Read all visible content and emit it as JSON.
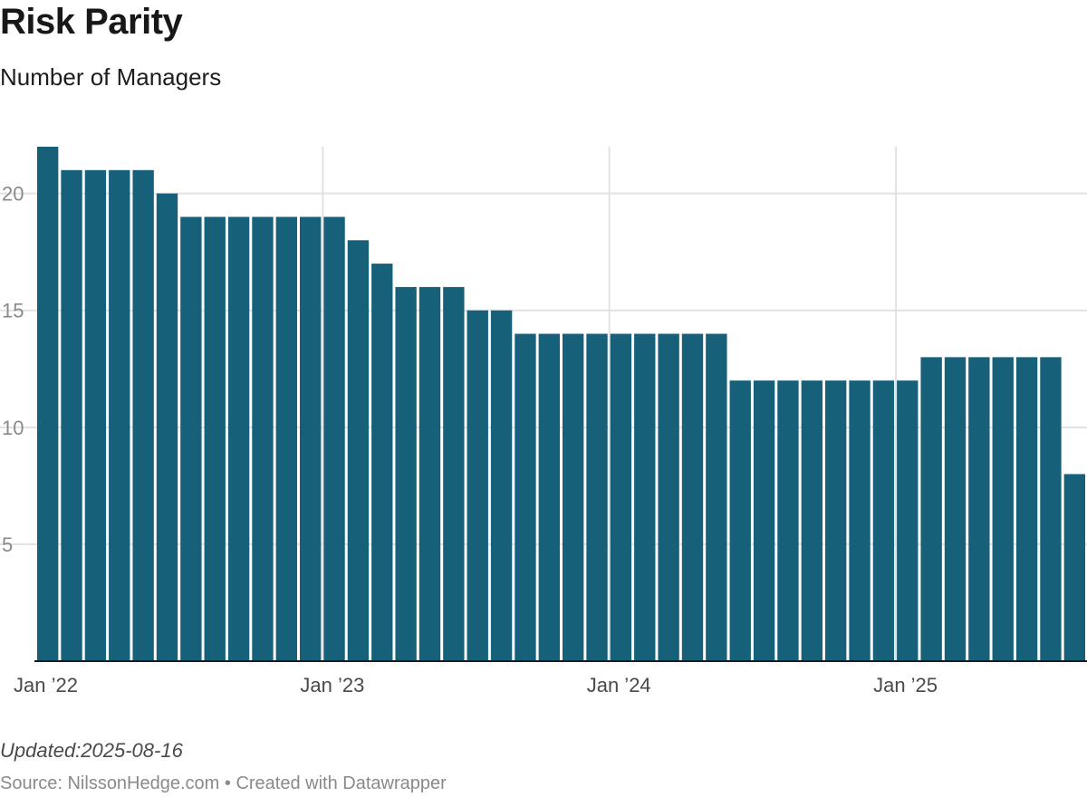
{
  "header": {
    "title": "Risk Parity",
    "subtitle": "Number of Managers"
  },
  "footer": {
    "updated": "Updated:2025-08-16",
    "source": "Source: NilssonHedge.com • Created with Datawrapper"
  },
  "colors": {
    "bar": "#17607a",
    "grid": "#e1e1e1",
    "baseline": "#1a1a1a"
  },
  "chart_data": {
    "type": "bar",
    "title": "Risk Parity",
    "subtitle": "Number of Managers",
    "xlabel": "",
    "ylabel": "",
    "ylim": [
      0,
      22
    ],
    "yticks": [
      5,
      10,
      15,
      20
    ],
    "xticks": [
      {
        "label": "Jan ’22",
        "index": 0
      },
      {
        "label": "Jan ’23",
        "index": 12
      },
      {
        "label": "Jan ’24",
        "index": 24
      },
      {
        "label": "Jan ’25",
        "index": 36
      }
    ],
    "grid": true,
    "categories": [
      "2022-01",
      "2022-02",
      "2022-03",
      "2022-04",
      "2022-05",
      "2022-06",
      "2022-07",
      "2022-08",
      "2022-09",
      "2022-10",
      "2022-11",
      "2022-12",
      "2023-01",
      "2023-02",
      "2023-03",
      "2023-04",
      "2023-05",
      "2023-06",
      "2023-07",
      "2023-08",
      "2023-09",
      "2023-10",
      "2023-11",
      "2023-12",
      "2024-01",
      "2024-02",
      "2024-03",
      "2024-04",
      "2024-05",
      "2024-06",
      "2024-07",
      "2024-08",
      "2024-09",
      "2024-10",
      "2024-11",
      "2024-12",
      "2025-01",
      "2025-02",
      "2025-03",
      "2025-04",
      "2025-05",
      "2025-06",
      "2025-07",
      "2025-08"
    ],
    "values": [
      22,
      21,
      21,
      21,
      21,
      20,
      19,
      19,
      19,
      19,
      19,
      19,
      19,
      18,
      17,
      16,
      16,
      16,
      15,
      15,
      14,
      14,
      14,
      14,
      14,
      14,
      14,
      14,
      14,
      12,
      12,
      12,
      12,
      12,
      12,
      12,
      12,
      13,
      13,
      13,
      13,
      13,
      13,
      8
    ]
  }
}
